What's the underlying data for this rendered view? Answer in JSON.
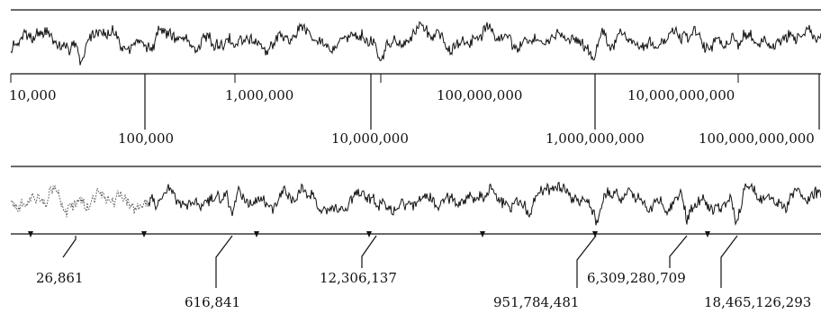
{
  "figure": {
    "colors": {
      "ink": "#111111",
      "dotted_trace": "#555555",
      "background": "#ffffff"
    },
    "top_panel": {
      "upper_scale_labels": [
        "10,000",
        "1,000,000",
        "100,000,000",
        "10,000,000,000"
      ],
      "lower_scale_labels": [
        "100,000",
        "10,000,000",
        "1,000,000,000",
        "100,000,000,000"
      ]
    },
    "bottom_panel": {
      "upper_row_labels": [
        "26,861",
        "12,306,137",
        "6,309,280,709"
      ],
      "lower_row_labels": [
        "616,841",
        "951,784,481",
        "18,465,126,293"
      ],
      "triangle_marker_count": 7
    }
  }
}
